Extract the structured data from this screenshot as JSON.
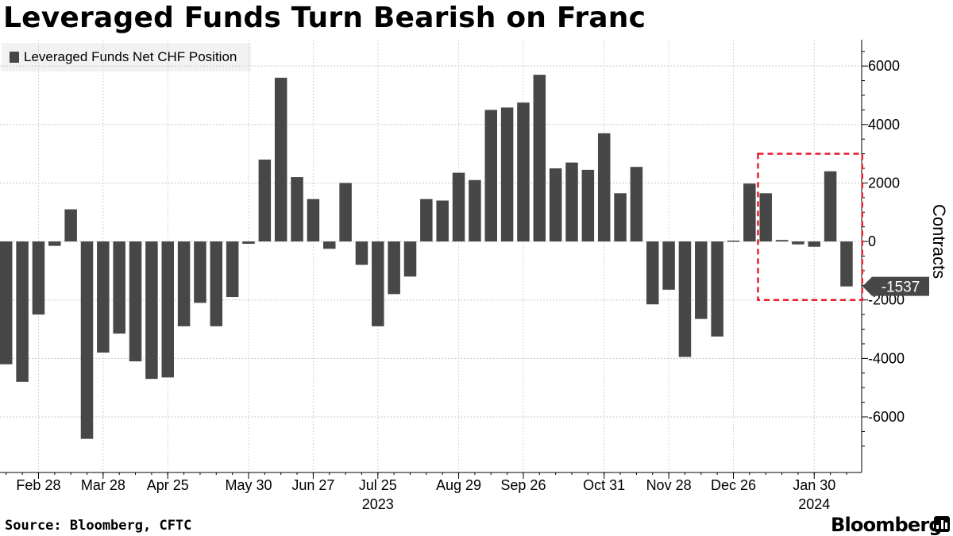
{
  "title": "Leveraged Funds Turn Bearish on Franc",
  "legend": {
    "label": "Leveraged Funds Net CHF Position",
    "color": "#474747"
  },
  "source": "Source: Bloomberg, CFTC",
  "brand": "Bloomberg",
  "chart_data": {
    "type": "bar",
    "title": "Leveraged Funds Turn Bearish on Franc",
    "ylabel": "Contracts",
    "xlabel": "",
    "ylim": [
      -7900,
      6900
    ],
    "yticks": [
      6000,
      4000,
      2000,
      0,
      -2000,
      -4000,
      -6000
    ],
    "grid": true,
    "bar_color": "#474747",
    "series": [
      {
        "name": "Leveraged Funds Net CHF Position",
        "values": [
          -4200,
          -4800,
          -2500,
          -150,
          1100,
          -6750,
          -3800,
          -3150,
          -4100,
          -4700,
          -4650,
          -2900,
          -2100,
          -2900,
          -1900,
          -80,
          2800,
          5600,
          2200,
          1450,
          -250,
          2000,
          -800,
          -2900,
          -1800,
          -1200,
          1450,
          1400,
          2350,
          2100,
          4500,
          4580,
          4750,
          5700,
          2500,
          2700,
          2450,
          3700,
          1650,
          2550,
          -2150,
          -1650,
          -3950,
          -2650,
          -3250,
          30,
          1980,
          1650,
          50,
          -100,
          -180,
          2400,
          -1537
        ]
      }
    ],
    "x_tick_labels": [
      "Feb 28",
      "Mar 28",
      "Apr 25",
      "May 30",
      "Jun 27",
      "Jul 25",
      "Aug 29",
      "Sep 26",
      "Oct 31",
      "Nov 28",
      "Dec 26",
      "Jan 30"
    ],
    "x_tick_bar_index": [
      2,
      6,
      10,
      15,
      19,
      23,
      28,
      32,
      37,
      41,
      45,
      50
    ],
    "year_labels": [
      {
        "label": "2023",
        "bar_index": 23
      },
      {
        "label": "2024",
        "bar_index": 50
      }
    ],
    "last_value_label": "-1537",
    "highlight": {
      "from_index": 47,
      "to_index": 52,
      "y_top": 3000,
      "y_bottom": -2000,
      "color": "#e8202f"
    }
  }
}
